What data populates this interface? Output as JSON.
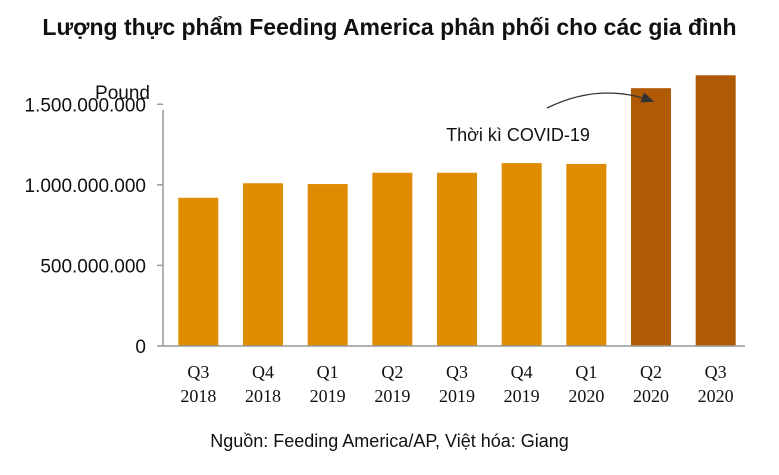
{
  "chart_data": {
    "type": "bar",
    "title": "Lượng thực phẩm Feeding America phân phối cho các gia đình",
    "ylabel": "Pound",
    "ylim": [
      0,
      1750000000
    ],
    "yticks": [
      {
        "value": 0,
        "label": "0"
      },
      {
        "value": 500000000,
        "label": "500.000.000"
      },
      {
        "value": 1000000000,
        "label": "1.000.000.000"
      },
      {
        "value": 1500000000,
        "label": "1.500.000.000"
      }
    ],
    "categories": [
      [
        "Q3",
        "2018"
      ],
      [
        "Q4",
        "2018"
      ],
      [
        "Q1",
        "2019"
      ],
      [
        "Q2",
        "2019"
      ],
      [
        "Q3",
        "2019"
      ],
      [
        "Q4",
        "2019"
      ],
      [
        "Q1",
        "2020"
      ],
      [
        "Q2",
        "2020"
      ],
      [
        "Q3",
        "2020"
      ]
    ],
    "values": [
      920000000,
      1010000000,
      1005000000,
      1075000000,
      1075000000,
      1135000000,
      1130000000,
      1600000000,
      1680000000
    ],
    "highlight_indices": [
      7,
      8
    ],
    "colors": {
      "normal": "#E08C00",
      "highlight": "#B05A05",
      "axis": "#999999",
      "annotation": "#333333"
    },
    "annotation": {
      "text": "Thời kì COVID-19",
      "arrow_to_category_index": 7
    },
    "grid": false,
    "legend": "none"
  },
  "source": "Nguồn: Feeding America/AP, Việt hóa: Giang"
}
